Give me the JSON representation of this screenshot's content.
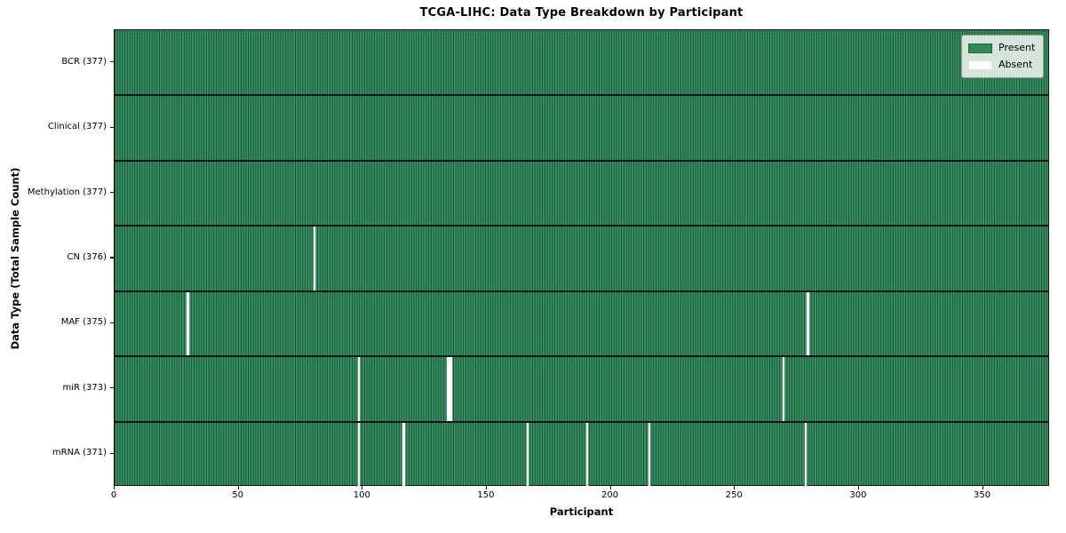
{
  "chart_data": {
    "type": "heatmap",
    "title": "TCGA-LIHC: Data Type Breakdown by Participant",
    "xlabel": "Participant",
    "ylabel": "Data Type (Total Sample Count)",
    "x_ticks": [
      0,
      50,
      100,
      150,
      200,
      250,
      300,
      350
    ],
    "x_range": [
      0,
      377
    ],
    "n_participants": 377,
    "grid": false,
    "legend_position": "upper right",
    "colors": {
      "present": "#2e8b57",
      "absent": "#ffffff",
      "cell_fill": "#33925f",
      "cell_edge": "#1d5435",
      "row_separator": "#151515"
    },
    "legend": [
      {
        "label": "Present",
        "color": "#2e8b57"
      },
      {
        "label": "Absent",
        "color": "#ffffff"
      }
    ],
    "rows": [
      {
        "name": "BCR",
        "label": "BCR (377)",
        "total": 377,
        "absent_participants": []
      },
      {
        "name": "Clinical",
        "label": "Clinical (377)",
        "total": 377,
        "absent_participants": []
      },
      {
        "name": "Methylation",
        "label": "Methylation (377)",
        "total": 377,
        "absent_participants": []
      },
      {
        "name": "CN",
        "label": "CN (376)",
        "total": 376,
        "absent_participants": [
          80
        ]
      },
      {
        "name": "MAF",
        "label": "MAF (375)",
        "total": 375,
        "absent_participants": [
          29,
          279
        ]
      },
      {
        "name": "miR",
        "label": "miR (373)",
        "total": 373,
        "absent_participants": [
          98,
          134,
          135,
          269
        ]
      },
      {
        "name": "mRNA",
        "label": "mRNA (371)",
        "total": 371,
        "absent_participants": [
          98,
          116,
          166,
          190,
          215,
          278
        ]
      }
    ]
  }
}
